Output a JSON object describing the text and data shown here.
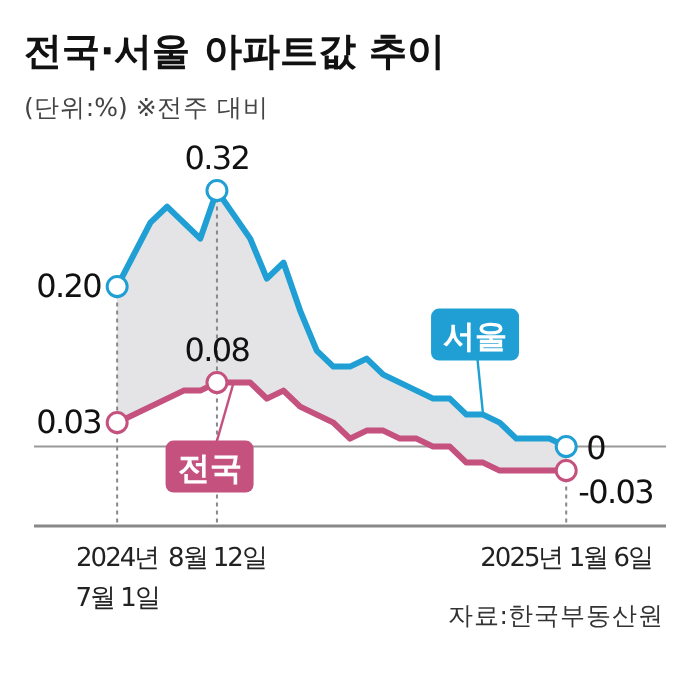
{
  "chart_data": {
    "type": "line",
    "title": "전국·서울 아파트값 추이",
    "subtitle": "(단위:%)  ※전주 대비",
    "annotations": [
      "자료:한국부동산원"
    ],
    "x": [
      "2024-07-01",
      "2024-07-08",
      "2024-07-15",
      "2024-07-22",
      "2024-07-29",
      "2024-08-05",
      "2024-08-12",
      "2024-08-19",
      "2024-08-26",
      "2024-09-02",
      "2024-09-09",
      "2024-09-16",
      "2024-09-23",
      "2024-09-30",
      "2024-10-07",
      "2024-10-14",
      "2024-10-21",
      "2024-10-28",
      "2024-11-04",
      "2024-11-11",
      "2024-11-18",
      "2024-11-25",
      "2024-12-02",
      "2024-12-09",
      "2024-12-16",
      "2024-12-23",
      "2024-12-30",
      "2025-01-06"
    ],
    "xlim": [
      "2024-05-27",
      "2025-02-17"
    ],
    "xticks": [
      {
        "value": "2024-07-01",
        "label": "2024년\n7월 1일"
      },
      {
        "value": "2024-08-12",
        "label": "8월 12일"
      },
      {
        "value": "2025-01-06",
        "label": "2025년 1월 6일"
      }
    ],
    "series": [
      {
        "name": "서울",
        "color": "#1f9fd4",
        "values": [
          0.2,
          0.24,
          0.28,
          0.3,
          0.28,
          0.26,
          0.32,
          0.29,
          0.26,
          0.21,
          0.23,
          0.17,
          0.12,
          0.1,
          0.1,
          0.11,
          0.09,
          0.08,
          0.07,
          0.06,
          0.06,
          0.04,
          0.04,
          0.03,
          0.01,
          0.01,
          0.01,
          0
        ],
        "upper": [
          0.2,
          0.24,
          0.28,
          0.3,
          0.28,
          0.26,
          0.32,
          0.29,
          0.26,
          0.21,
          0.23,
          0.17,
          0.12,
          0.1,
          0.1,
          0.11,
          0.09,
          0.08,
          0.07,
          0.06,
          0.06,
          0.04,
          0.04,
          0.03,
          0.01,
          0.01,
          0.01,
          0
        ],
        "lower": [
          0.03,
          0.04,
          0.05,
          0.06,
          0.07,
          0.07,
          0.08,
          0.08,
          0.08,
          0.06,
          0.07,
          0.05,
          0.04,
          0.03,
          0.01,
          0.02,
          0.02,
          0.01,
          0.01,
          0,
          0,
          -0.02,
          -0.02,
          -0.03,
          -0.03,
          -0.03,
          -0.03,
          -0.03
        ],
        "value_labels": [
          "0.20",
          null,
          null,
          null,
          null,
          null,
          "0.32",
          null,
          null,
          null,
          null,
          null,
          null,
          null,
          null,
          null,
          null,
          null,
          null,
          null,
          null,
          null,
          null,
          null,
          null,
          null,
          null,
          "0"
        ]
      },
      {
        "name": "전국",
        "color": "#c4517e",
        "values": [
          0.03,
          0.04,
          0.05,
          0.06,
          0.07,
          0.07,
          0.08,
          0.08,
          0.08,
          0.06,
          0.07,
          0.05,
          0.04,
          0.03,
          0.01,
          0.02,
          0.02,
          0.01,
          0.01,
          0,
          0,
          -0.02,
          -0.02,
          -0.03,
          -0.03,
          -0.03,
          -0.03,
          -0.03
        ],
        "value_labels": [
          "0.03",
          null,
          null,
          null,
          null,
          null,
          "0.08",
          null,
          null,
          null,
          null,
          null,
          null,
          null,
          null,
          null,
          null,
          null,
          null,
          null,
          null,
          null,
          null,
          null,
          null,
          null,
          null,
          "-0.03"
        ]
      }
    ],
    "grid": "x",
    "legend": false
  }
}
